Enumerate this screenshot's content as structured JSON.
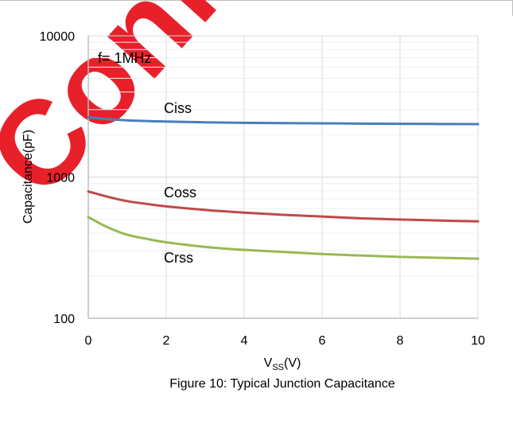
{
  "watermark": {
    "text": "Confidential",
    "color": "#e8202a"
  },
  "chart_data": {
    "type": "line",
    "title": "",
    "caption": "Figure 10: Typical Junction Capacitance",
    "annotation": "f= 1MHz",
    "xlabel_main": "V",
    "xlabel_sub": "SS",
    "xlabel_unit": "(V)",
    "ylabel": "Capacitance(pF)",
    "xlim": [
      0,
      10
    ],
    "ylim": [
      100,
      10000
    ],
    "yscale": "log",
    "grid": true,
    "x_ticks": [
      0,
      2,
      4,
      6,
      8,
      10
    ],
    "y_ticks": [
      100,
      1000,
      10000
    ],
    "x_tick_labels": [
      "0",
      "2",
      "4",
      "6",
      "8",
      "10"
    ],
    "y_tick_labels": [
      "100",
      "1000",
      "10000"
    ],
    "series": [
      {
        "name": "Ciss",
        "color": "#4a7ebb",
        "x": [
          0,
          0.5,
          1,
          1.5,
          2,
          3,
          4,
          5,
          6,
          7,
          8,
          9,
          10
        ],
        "y": [
          2650,
          2570,
          2520,
          2490,
          2470,
          2440,
          2420,
          2410,
          2400,
          2390,
          2380,
          2375,
          2370
        ]
      },
      {
        "name": "Coss",
        "color": "#be4b48",
        "x": [
          0,
          0.5,
          1,
          1.5,
          2,
          3,
          4,
          5,
          6,
          7,
          8,
          9,
          10
        ],
        "y": [
          790,
          725,
          675,
          645,
          620,
          585,
          560,
          540,
          525,
          510,
          500,
          492,
          485
        ]
      },
      {
        "name": "Crss",
        "color": "#98b954",
        "x": [
          0,
          0.5,
          1,
          1.5,
          2,
          3,
          4,
          5,
          6,
          7,
          8,
          9,
          10
        ],
        "y": [
          520,
          440,
          390,
          365,
          345,
          320,
          305,
          295,
          285,
          278,
          272,
          268,
          264
        ]
      }
    ]
  }
}
